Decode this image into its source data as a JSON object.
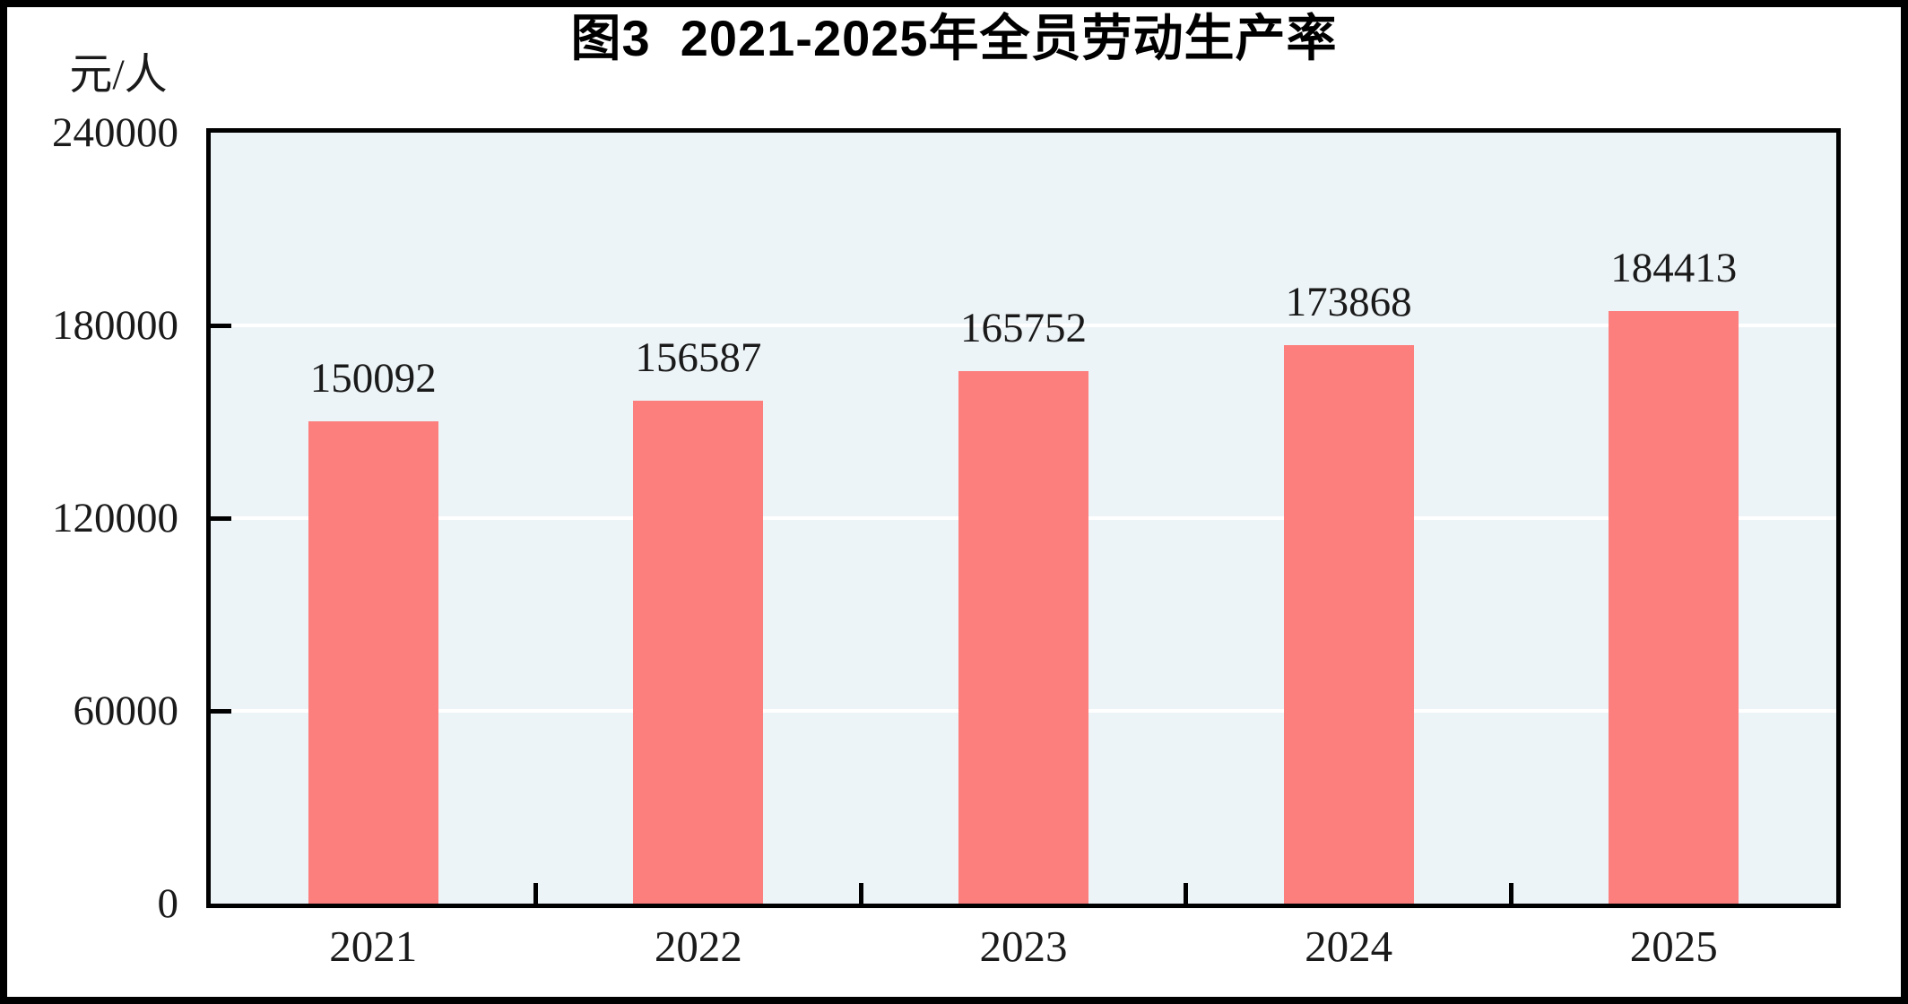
{
  "figure": {
    "title": "图3  2021-2025年全员劳动生产率",
    "unit_label": "元/人"
  },
  "chart_data": {
    "type": "bar",
    "title": "图3  2021-2025年全员劳动生产率",
    "categories": [
      "2021",
      "2022",
      "2023",
      "2024",
      "2025"
    ],
    "values": [
      150092,
      156587,
      165752,
      173868,
      184413
    ],
    "data_labels": [
      "150092",
      "156587",
      "165752",
      "173868",
      "184413"
    ],
    "xlabel": "",
    "ylabel": "元/人",
    "ylim": [
      0,
      240000
    ],
    "yticks": [
      0,
      60000,
      120000,
      180000,
      240000
    ],
    "gridlines_at": [
      60000,
      120000,
      180000
    ],
    "legend": "none",
    "colors": {
      "bar": "#FC7F7E",
      "plot_background": "#EDF4F7",
      "gridline": "#FFFFFF",
      "axis": "#000000",
      "text": "#1A1A1A",
      "page_background": "#FFFFFF",
      "frame": "#000000"
    }
  }
}
